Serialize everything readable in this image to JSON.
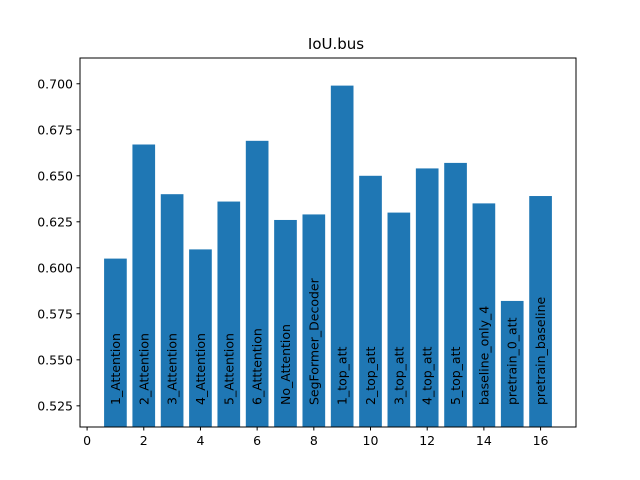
{
  "chart_data": {
    "type": "bar",
    "title": "IoU.bus",
    "xlabel": "",
    "ylabel": "",
    "xlim": [
      -0.25,
      17.25
    ],
    "ylim": [
      0.5135,
      0.714
    ],
    "xticks": [
      0,
      2,
      4,
      6,
      8,
      10,
      12,
      14,
      16
    ],
    "yticks": [
      0.525,
      0.55,
      0.575,
      0.6,
      0.625,
      0.65,
      0.675,
      0.7
    ],
    "ytick_labels": [
      "0.525",
      "0.550",
      "0.575",
      "0.600",
      "0.625",
      "0.650",
      "0.675",
      "0.700"
    ],
    "grid": false,
    "bar_color": "#1f77b4",
    "bars": [
      {
        "x": 1,
        "value": 0.605,
        "label": "1_Attention"
      },
      {
        "x": 2,
        "value": 0.667,
        "label": "2_Attention"
      },
      {
        "x": 3,
        "value": 0.64,
        "label": "3_Attention"
      },
      {
        "x": 4,
        "value": 0.61,
        "label": "4_Attention"
      },
      {
        "x": 5,
        "value": 0.636,
        "label": "5_Attention"
      },
      {
        "x": 6,
        "value": 0.669,
        "label": "6_Atttention"
      },
      {
        "x": 7,
        "value": 0.626,
        "label": "No_Attention"
      },
      {
        "x": 8,
        "value": 0.629,
        "label": "SegFormer_Decoder"
      },
      {
        "x": 9,
        "value": 0.699,
        "label": "1_top_att"
      },
      {
        "x": 10,
        "value": 0.65,
        "label": "2_top_att"
      },
      {
        "x": 11,
        "value": 0.63,
        "label": "3_top_att"
      },
      {
        "x": 12,
        "value": 0.654,
        "label": "4_top_att"
      },
      {
        "x": 13,
        "value": 0.657,
        "label": "5_top_att"
      },
      {
        "x": 14,
        "value": 0.635,
        "label": "baseline_only_4"
      },
      {
        "x": 15,
        "value": 0.582,
        "label": "pretrain_0_att"
      },
      {
        "x": 16,
        "value": 0.639,
        "label": "pretrain_baseline"
      }
    ]
  }
}
